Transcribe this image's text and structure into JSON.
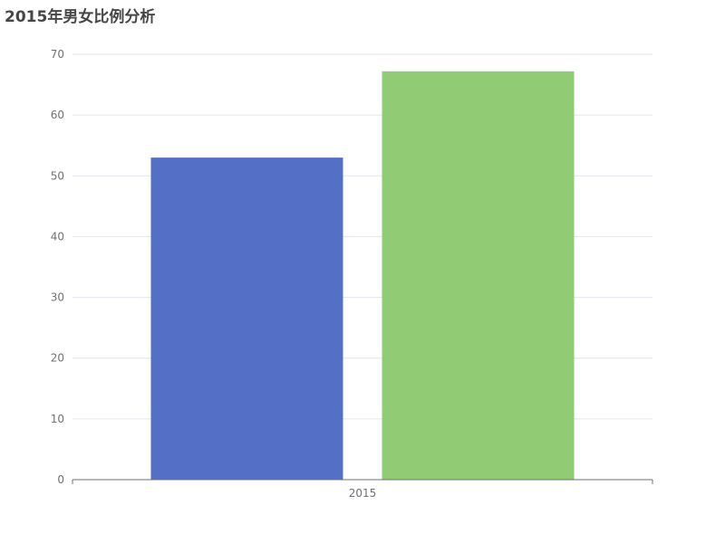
{
  "chart_data": {
    "type": "bar",
    "title": "2015年男女比例分析",
    "categories": [
      "2015"
    ],
    "series": [
      {
        "values": [
          53
        ],
        "color": "#5470c6"
      },
      {
        "values": [
          67.2
        ],
        "color": "#91cc75"
      }
    ],
    "ylim": [
      0,
      70
    ],
    "yticks": [
      0,
      10,
      20,
      30,
      40,
      50,
      60,
      70
    ],
    "grid": true
  }
}
